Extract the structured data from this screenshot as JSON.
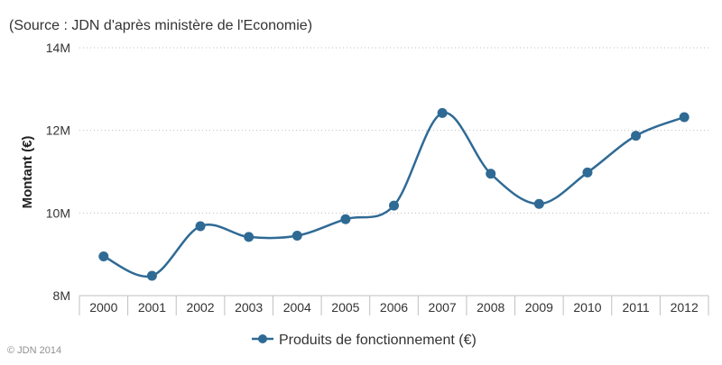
{
  "chart_data": {
    "type": "line",
    "subtitle": "(Source : JDN d'après ministère de l'Economie)",
    "ylabel": "Montant (€)",
    "xlabel": "",
    "categories": [
      "2000",
      "2001",
      "2002",
      "2003",
      "2004",
      "2005",
      "2006",
      "2007",
      "2008",
      "2009",
      "2010",
      "2011",
      "2012"
    ],
    "series": [
      {
        "name": "Produits de fonctionnement (€)",
        "color": "#2f6a95",
        "values": [
          8.95,
          8.48,
          9.68,
          9.42,
          9.45,
          9.85,
          10.18,
          12.42,
          10.95,
          10.22,
          10.98,
          11.87,
          12.32
        ]
      }
    ],
    "yunit": "M",
    "ylim": [
      8,
      14
    ],
    "yticks": [
      8,
      10,
      12,
      14
    ],
    "ytick_labels": [
      "8M",
      "10M",
      "12M",
      "14M"
    ],
    "grid": true,
    "legend_position": "bottom-center",
    "line_style": "smooth-spline"
  },
  "credit": "© JDN 2014"
}
